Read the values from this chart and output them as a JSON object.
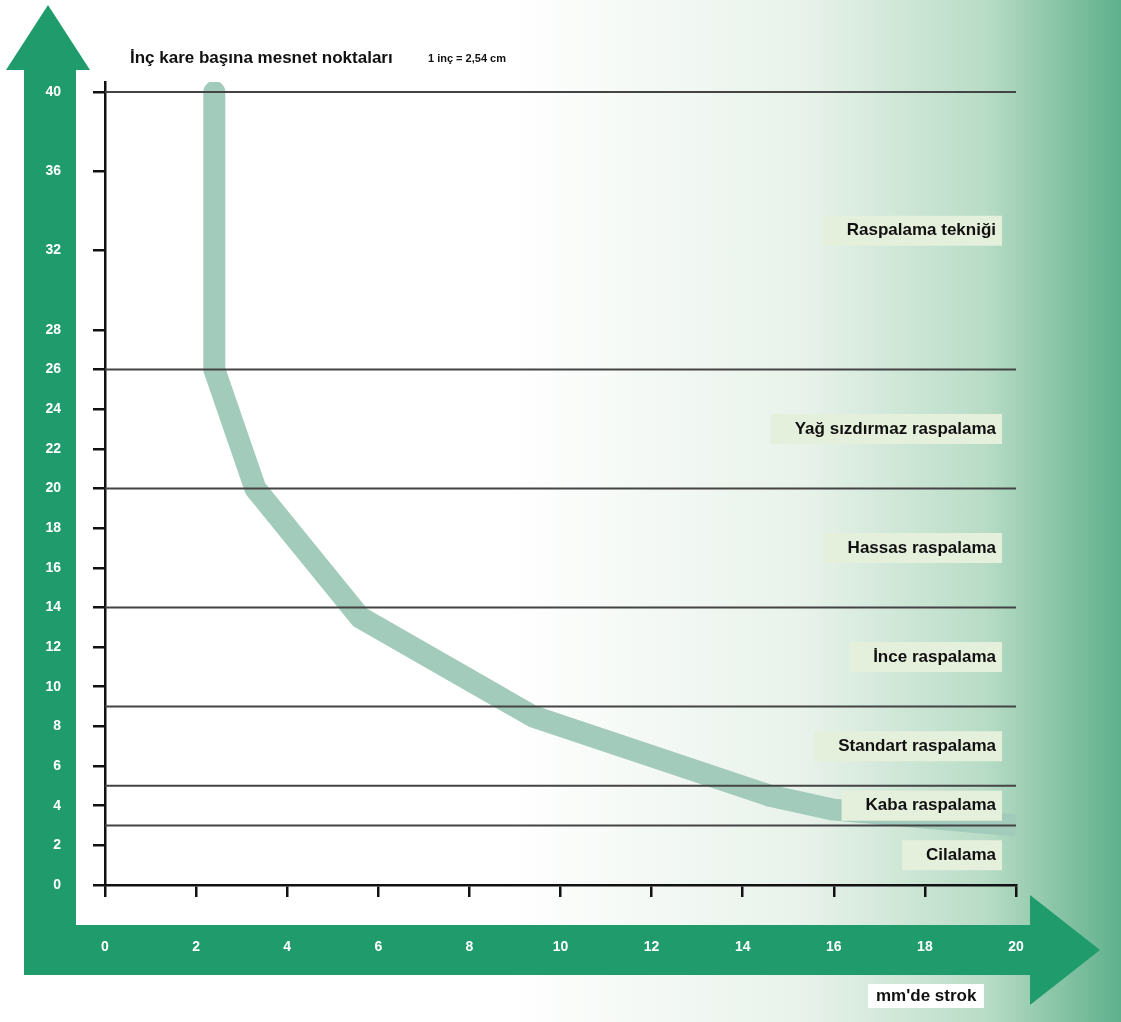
{
  "chart_data": {
    "type": "line",
    "ylabel": "İnç kare başına mesnet noktaları",
    "xlabel": "mm'de strok",
    "annotations": [
      "1 inç = 2,54 cm",
      "Raspalama tekniği",
      "Yağ sızdırmaz raspalama",
      "Hassas raspalama",
      "İnce raspalama",
      "Standart raspalama",
      "Kaba raspalama",
      "Cilalama"
    ],
    "x": [
      2.4,
      2.4,
      3.3,
      5.6,
      9.4,
      14.6,
      16,
      20
    ],
    "series": [
      {
        "color": "#a3cbbb",
        "values": [
          40,
          26,
          20,
          13.5,
          8.5,
          4.5,
          3.8,
          3
        ]
      }
    ],
    "xlim": [
      0,
      20
    ],
    "xticks": [
      0,
      2,
      4,
      6,
      8,
      10,
      12,
      14,
      16,
      18,
      20
    ],
    "ylim": [
      0,
      40.5
    ],
    "yticks": [
      0,
      2,
      4,
      6,
      8,
      10,
      12,
      14,
      16,
      18,
      20,
      22,
      24,
      26,
      28,
      32,
      36,
      40
    ],
    "ref_lines": [
      {
        "axis": "y",
        "value": 3,
        "color": "#444444"
      },
      {
        "axis": "y",
        "value": 5,
        "color": "#444444"
      },
      {
        "axis": "y",
        "value": 9,
        "color": "#444444"
      },
      {
        "axis": "y",
        "value": 14,
        "color": "#444444"
      },
      {
        "axis": "y",
        "value": 20,
        "color": "#444444"
      },
      {
        "axis": "y",
        "value": 26,
        "color": "#444444"
      },
      {
        "axis": "y",
        "value": 40,
        "color": "#444444"
      }
    ],
    "marker": "none",
    "line_style": "solid",
    "grid": false,
    "legend": false
  }
}
